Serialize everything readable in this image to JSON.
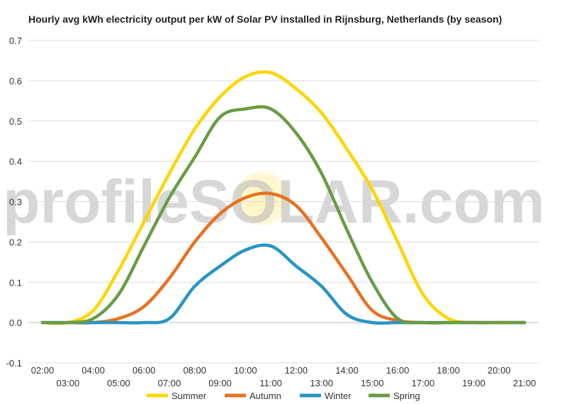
{
  "title": "Hourly avg kWh electricity output per kW of Solar PV installed in Rijnsburg, Netherlands (by season)",
  "watermark": {
    "prefix": "profile",
    "s": "S",
    "o": "O",
    "suffix": "LAR.com"
  },
  "chart_data": {
    "type": "line",
    "title": "Hourly avg kWh electricity output per kW of Solar PV installed in Rijnsburg, Netherlands (by season)",
    "xlabel": "",
    "ylabel": "",
    "x": [
      "02:00",
      "03:00",
      "04:00",
      "05:00",
      "06:00",
      "07:00",
      "08:00",
      "09:00",
      "10:00",
      "11:00",
      "12:00",
      "13:00",
      "14:00",
      "15:00",
      "16:00",
      "17:00",
      "18:00",
      "19:00",
      "20:00",
      "21:00"
    ],
    "x_tick_labels_top": [
      "02:00",
      "04:00",
      "06:00",
      "08:00",
      "10:00",
      "12:00",
      "14:00",
      "16:00",
      "18:00",
      "20:00"
    ],
    "x_tick_labels_bottom": [
      "03:00",
      "05:00",
      "07:00",
      "09:00",
      "11:00",
      "13:00",
      "15:00",
      "17:00",
      "19:00",
      "21:00"
    ],
    "y_ticks": [
      "0.7",
      "0.6",
      "0.5",
      "0.4",
      "0.3",
      "0.2",
      "0.1",
      "0.0",
      "-0.1"
    ],
    "ylim": [
      -0.1,
      0.7
    ],
    "grid": true,
    "legend_position": "bottom",
    "series": [
      {
        "name": "Summer",
        "color": "#FFD500",
        "values": [
          0,
          0,
          0.03,
          0.13,
          0.25,
          0.37,
          0.48,
          0.56,
          0.61,
          0.62,
          0.58,
          0.52,
          0.43,
          0.33,
          0.2,
          0.07,
          0.01,
          0,
          0,
          0
        ]
      },
      {
        "name": "Autumn",
        "color": "#E8711F",
        "values": [
          0,
          0,
          0,
          0.01,
          0.04,
          0.11,
          0.2,
          0.27,
          0.31,
          0.32,
          0.29,
          0.21,
          0.12,
          0.03,
          0.005,
          0,
          0,
          0,
          0,
          0
        ]
      },
      {
        "name": "Winter",
        "color": "#2795C4",
        "values": [
          0,
          0,
          0,
          0,
          0,
          0.01,
          0.09,
          0.14,
          0.18,
          0.19,
          0.14,
          0.09,
          0.02,
          0,
          0,
          0,
          0,
          0,
          0,
          0
        ]
      },
      {
        "name": "Spring",
        "color": "#6A9B46",
        "values": [
          0,
          0,
          0.01,
          0.07,
          0.19,
          0.31,
          0.41,
          0.51,
          0.53,
          0.53,
          0.47,
          0.37,
          0.23,
          0.1,
          0.01,
          0,
          0,
          0,
          0,
          0
        ]
      }
    ]
  }
}
